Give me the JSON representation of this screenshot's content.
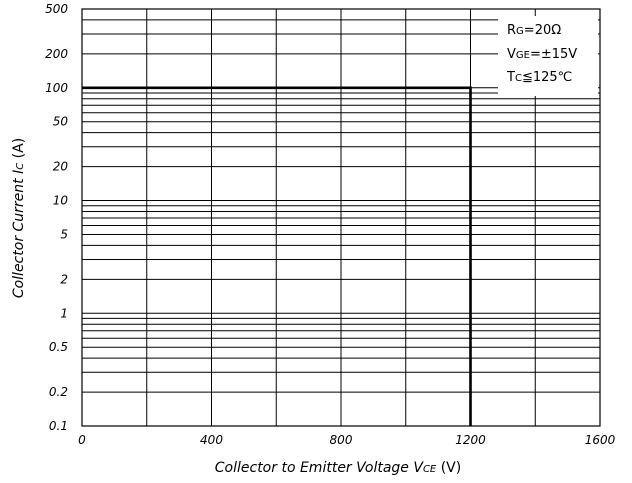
{
  "chart_data": {
    "type": "line",
    "xlabel": "Collector to Emitter Voltage  VCE (V)",
    "ylabel": "Collector Current  IC (A)",
    "x_scale": "linear",
    "y_scale": "log",
    "xlim": [
      0,
      1600
    ],
    "ylim": [
      0.1,
      500
    ],
    "x_ticks": [
      0,
      400,
      800,
      1200,
      1600
    ],
    "x_tick_labels": [
      "0",
      "400",
      "800",
      "1200",
      "1600"
    ],
    "x_minor_gridlines": [
      200,
      600,
      1000,
      1400
    ],
    "y_ticks": [
      0.1,
      0.2,
      0.5,
      1,
      2,
      5,
      10,
      20,
      50,
      100,
      200,
      500
    ],
    "y_tick_labels": [
      "0.1",
      "0.2",
      "0.5",
      "1",
      "2",
      "5",
      "10",
      "20",
      "50",
      "100",
      "200",
      "500"
    ],
    "grid": true,
    "legend_position": "top-right",
    "annotations": [
      "RG=20Ω",
      "VGE=±15V",
      "TC≦125℃"
    ],
    "series": [
      {
        "x": [
          0,
          1200,
          1200
        ],
        "y": [
          100,
          100,
          0.1
        ]
      }
    ]
  },
  "labels": {
    "ylabel_main": "Collector Current  ",
    "ylabel_sym": "I",
    "ylabel_sub": "C",
    "ylabel_unit": " (A)",
    "xlabel_main": "Collector to Emitter Voltage  ",
    "xlabel_sym": "V",
    "xlabel_sub": "CE",
    "xlabel_unit": " (V)",
    "rg_main": "R",
    "rg_sub": "G",
    "rg_val": "=20Ω",
    "vge_main": "V",
    "vge_sub": "GE",
    "vge_val": "=±15V",
    "tc_main": "T",
    "tc_sub": "C",
    "tc_val": "≦125℃"
  }
}
